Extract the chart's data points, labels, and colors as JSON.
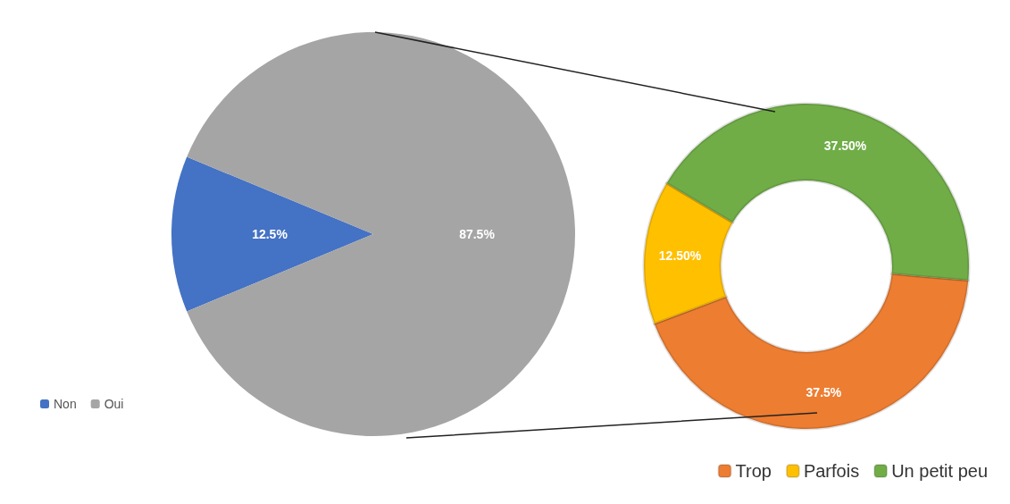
{
  "chart_data": [
    {
      "type": "pie",
      "categories": [
        "Non",
        "Oui"
      ],
      "values": [
        12.5,
        87.5
      ],
      "colors": [
        "#4472c4",
        "#a5a5a5"
      ],
      "value_labels": [
        "12.5%",
        "87.5%"
      ],
      "legend": "bottom left"
    },
    {
      "type": "donut",
      "categories": [
        "Trop",
        "Parfois",
        "Un petit peu"
      ],
      "values": [
        37.5,
        12.5,
        37.5
      ],
      "colors": [
        "#ed7d31",
        "#ffc000",
        "#70ad47"
      ],
      "value_labels": [
        "37.5%",
        "12.50%",
        "37.50%"
      ],
      "legend": "bottom right"
    }
  ]
}
